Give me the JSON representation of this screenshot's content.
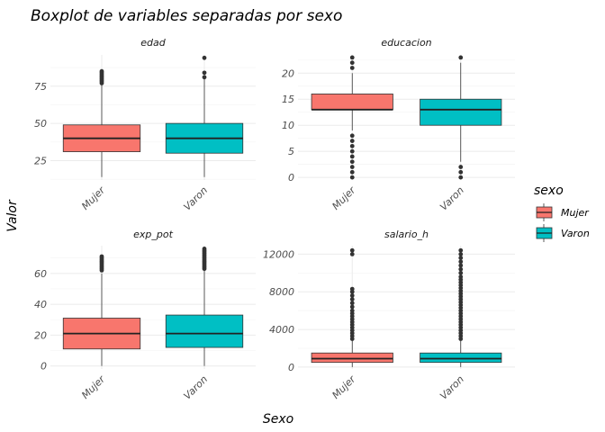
{
  "chart_data": {
    "type": "boxplot",
    "title": "Boxplot de variables separadas por sexo",
    "xlabel": "Sexo",
    "ylabel": "Valor",
    "categories": [
      "Mujer",
      "Varon"
    ],
    "legend": {
      "title": "sexo",
      "placement": "right",
      "entries": [
        {
          "label": "Mujer",
          "color": "#F8766D"
        },
        {
          "label": "Varon",
          "color": "#00BFC4"
        }
      ]
    },
    "grid": true,
    "panels": [
      {
        "name": "edad",
        "ylim": [
          12,
          96
        ],
        "yticks": [
          25,
          50,
          75
        ],
        "boxes": [
          {
            "category": "Mujer",
            "color": "#F8766D",
            "min": 14,
            "q1": 31,
            "median": 40,
            "q3": 49,
            "max": 76,
            "outliers": [
              77,
              78,
              79,
              80,
              81,
              82,
              83,
              84,
              85
            ]
          },
          {
            "category": "Varon",
            "color": "#00BFC4",
            "min": 14,
            "q1": 30,
            "median": 40,
            "q3": 50,
            "max": 80,
            "outliers": [
              81,
              84,
              94
            ]
          }
        ]
      },
      {
        "name": "educacion",
        "ylim": [
          -0.5,
          23.5
        ],
        "yticks": [
          0,
          5,
          10,
          15,
          20
        ],
        "boxes": [
          {
            "category": "Mujer",
            "color": "#F8766D",
            "min": 9,
            "q1": 13,
            "median": 13,
            "q3": 16,
            "max": 20,
            "outliers": [
              0,
              1,
              2,
              3,
              4,
              5,
              6,
              7,
              8,
              21,
              22,
              23
            ]
          },
          {
            "category": "Varon",
            "color": "#00BFC4",
            "min": 3,
            "q1": 10,
            "median": 13,
            "q3": 15,
            "max": 22,
            "outliers": [
              0,
              1,
              2,
              23
            ]
          }
        ]
      },
      {
        "name": "exp_pot",
        "ylim": [
          -2,
          78
        ],
        "yticks": [
          0,
          20,
          40,
          60
        ],
        "boxes": [
          {
            "category": "Mujer",
            "color": "#F8766D",
            "min": 0,
            "q1": 11,
            "median": 21,
            "q3": 31,
            "max": 60,
            "outliers": [
              62,
              63,
              64,
              65,
              66,
              67,
              68,
              69,
              70,
              71
            ]
          },
          {
            "category": "Varon",
            "color": "#00BFC4",
            "min": 0,
            "q1": 12,
            "median": 21,
            "q3": 33,
            "max": 62,
            "outliers": [
              63,
              64,
              65,
              66,
              67,
              68,
              69,
              70,
              71,
              72,
              73,
              74,
              75,
              76
            ]
          }
        ]
      },
      {
        "name": "salario_h",
        "ylim": [
          -200,
          12900
        ],
        "yticks": [
          0,
          4000,
          8000,
          12000
        ],
        "yticklabels": [
          "0",
          "4000",
          "8000",
          "12000"
        ],
        "boxes": [
          {
            "category": "Mujer",
            "color": "#F8766D",
            "min": 0,
            "q1": 500,
            "median": 900,
            "q3": 1500,
            "max": 2900,
            "outliers": [
              3000,
              3300,
              3600,
              3900,
              4200,
              4500,
              4800,
              5100,
              5400,
              5700,
              6000,
              6400,
              6800,
              7200,
              7600,
              8000,
              8300,
              12000,
              12400
            ]
          },
          {
            "category": "Varon",
            "color": "#00BFC4",
            "min": 0,
            "q1": 500,
            "median": 900,
            "q3": 1500,
            "max": 2900,
            "outliers": [
              3000,
              3300,
              3600,
              3900,
              4200,
              4500,
              4800,
              5100,
              5400,
              5700,
              6000,
              6300,
              6600,
              6900,
              7200,
              7500,
              7800,
              8100,
              8400,
              8700,
              9000,
              9300,
              9600,
              10000,
              10400,
              10800,
              11200,
              11600,
              12000,
              12400
            ]
          }
        ]
      }
    ]
  }
}
